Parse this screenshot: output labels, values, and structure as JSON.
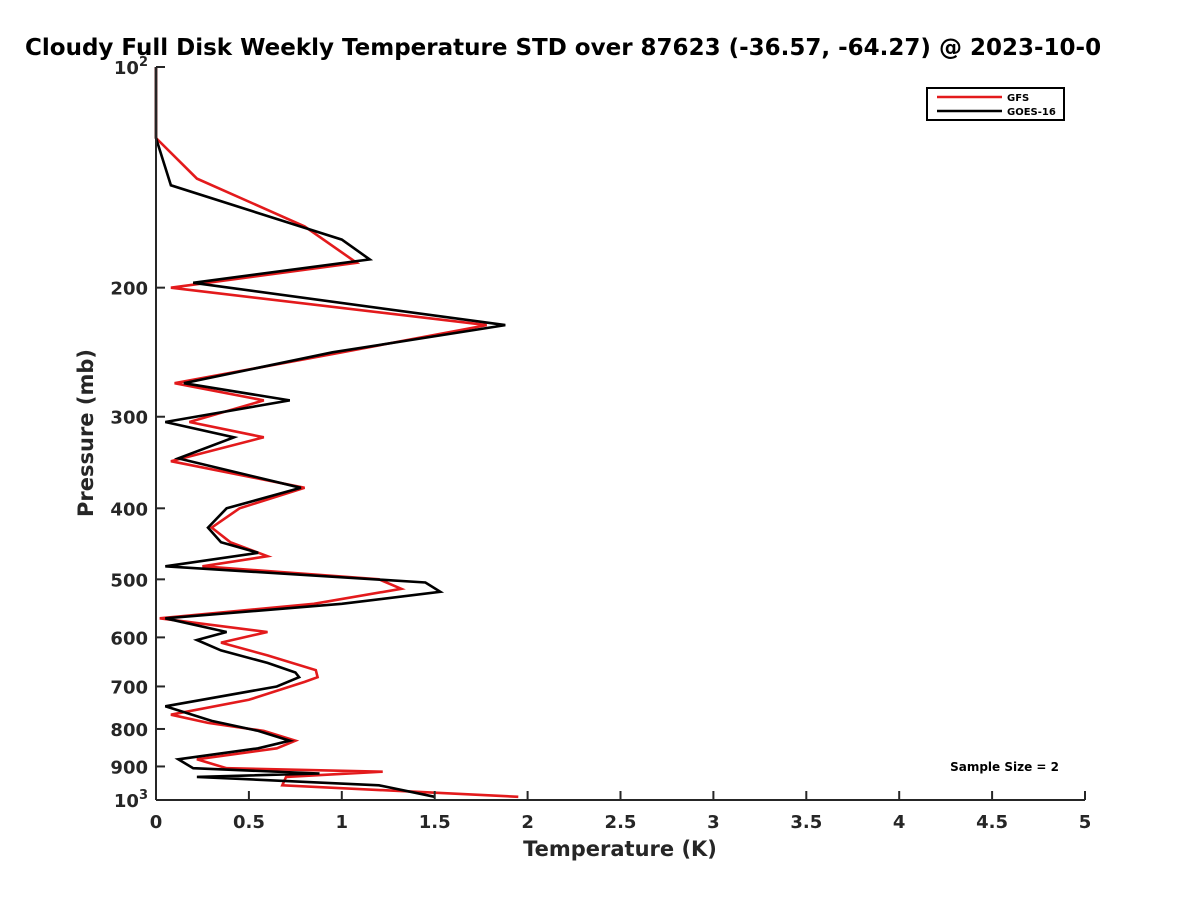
{
  "chart_data": {
    "type": "line",
    "title": "Cloudy Full Disk Weekly Temperature STD over 87623 (-36.57, -64.27) @ 2023-10-0",
    "xlabel": "Temperature (K)",
    "ylabel": "Pressure (mb)",
    "xlim": [
      0,
      5
    ],
    "ylim": [
      100,
      1000
    ],
    "yscale": "log",
    "yreversed": true,
    "grid": false,
    "x_ticks": [
      "0",
      "0.5",
      "1",
      "1.5",
      "2",
      "2.5",
      "3",
      "3.5",
      "4",
      "4.5",
      "5"
    ],
    "y_ticks": [
      {
        "value": 100,
        "base": "10",
        "exp": "2"
      },
      {
        "value": 200,
        "label": "200"
      },
      {
        "value": 300,
        "label": "300"
      },
      {
        "value": 400,
        "label": "400"
      },
      {
        "value": 500,
        "label": "500"
      },
      {
        "value": 600,
        "label": "600"
      },
      {
        "value": 700,
        "label": "700"
      },
      {
        "value": 800,
        "label": "800"
      },
      {
        "value": 900,
        "label": "900"
      },
      {
        "value": 1000,
        "base": "10",
        "exp": "3"
      }
    ],
    "legend_position": "top-right",
    "annotation": "Sample Size = 2",
    "series": [
      {
        "name": "GFS",
        "color": "#e31a1c",
        "points": [
          [
            0.0,
            100
          ],
          [
            0.0,
            125
          ],
          [
            0.22,
            142
          ],
          [
            0.8,
            165
          ],
          [
            1.08,
            185
          ],
          [
            0.08,
            200
          ],
          [
            1.78,
            225
          ],
          [
            1.0,
            245
          ],
          [
            0.1,
            270
          ],
          [
            0.58,
            285
          ],
          [
            0.18,
            305
          ],
          [
            0.58,
            320
          ],
          [
            0.08,
            345
          ],
          [
            0.8,
            375
          ],
          [
            0.45,
            400
          ],
          [
            0.3,
            425
          ],
          [
            0.4,
            445
          ],
          [
            0.6,
            465
          ],
          [
            0.25,
            480
          ],
          [
            1.2,
            500
          ],
          [
            1.32,
            515
          ],
          [
            0.85,
            540
          ],
          [
            0.02,
            565
          ],
          [
            0.6,
            590
          ],
          [
            0.35,
            610
          ],
          [
            0.6,
            635
          ],
          [
            0.86,
            665
          ],
          [
            0.87,
            680
          ],
          [
            0.8,
            690
          ],
          [
            0.5,
            730
          ],
          [
            0.08,
            765
          ],
          [
            0.28,
            785
          ],
          [
            0.58,
            805
          ],
          [
            0.75,
            830
          ],
          [
            0.65,
            850
          ],
          [
            0.22,
            880
          ],
          [
            0.38,
            905
          ],
          [
            1.22,
            915
          ],
          [
            0.7,
            930
          ],
          [
            0.68,
            955
          ],
          [
            1.95,
            990
          ]
        ]
      },
      {
        "name": "GOES-16",
        "color": "#000000",
        "points": [
          [
            0.0,
            100
          ],
          [
            0.0,
            125
          ],
          [
            0.08,
            145
          ],
          [
            1.0,
            172
          ],
          [
            1.15,
            183
          ],
          [
            0.2,
            197
          ],
          [
            1.88,
            225
          ],
          [
            0.95,
            245
          ],
          [
            0.15,
            270
          ],
          [
            0.72,
            285
          ],
          [
            0.05,
            305
          ],
          [
            0.42,
            320
          ],
          [
            0.12,
            342
          ],
          [
            0.78,
            375
          ],
          [
            0.38,
            400
          ],
          [
            0.28,
            425
          ],
          [
            0.35,
            445
          ],
          [
            0.55,
            460
          ],
          [
            0.05,
            480
          ],
          [
            1.45,
            505
          ],
          [
            1.53,
            520
          ],
          [
            1.0,
            540
          ],
          [
            0.05,
            565
          ],
          [
            0.38,
            590
          ],
          [
            0.22,
            605
          ],
          [
            0.35,
            625
          ],
          [
            0.6,
            650
          ],
          [
            0.75,
            670
          ],
          [
            0.77,
            680
          ],
          [
            0.65,
            700
          ],
          [
            0.05,
            745
          ],
          [
            0.3,
            780
          ],
          [
            0.55,
            805
          ],
          [
            0.72,
            830
          ],
          [
            0.55,
            850
          ],
          [
            0.12,
            880
          ],
          [
            0.2,
            905
          ],
          [
            0.88,
            920
          ],
          [
            0.22,
            930
          ],
          [
            1.2,
            955
          ],
          [
            1.5,
            990
          ]
        ]
      }
    ]
  }
}
